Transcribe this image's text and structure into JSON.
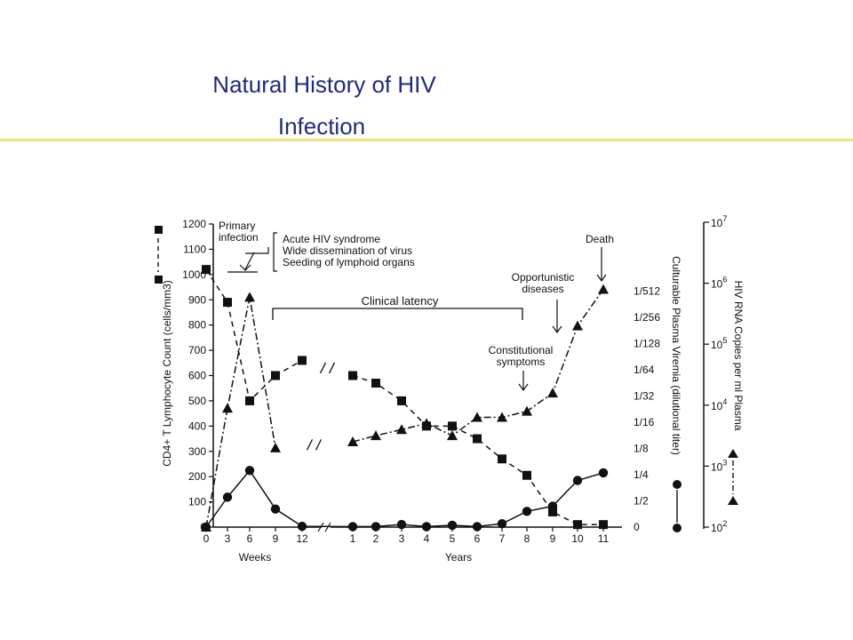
{
  "slide": {
    "title_line1": "Natural History of HIV",
    "title_line2": "Infection",
    "rule_color": "#f0e07a",
    "title_color": "#1f2a7a"
  },
  "chart_data": {
    "type": "line",
    "x_ticks": [
      {
        "label": "0",
        "unit": "Weeks"
      },
      {
        "label": "3",
        "unit": "Weeks"
      },
      {
        "label": "6",
        "unit": "Weeks"
      },
      {
        "label": "9",
        "unit": "Weeks"
      },
      {
        "label": "12",
        "unit": "Weeks"
      },
      {
        "label": "1",
        "unit": "Years"
      },
      {
        "label": "2",
        "unit": "Years"
      },
      {
        "label": "3",
        "unit": "Years"
      },
      {
        "label": "4",
        "unit": "Years"
      },
      {
        "label": "5",
        "unit": "Years"
      },
      {
        "label": "6",
        "unit": "Years"
      },
      {
        "label": "7",
        "unit": "Years"
      },
      {
        "label": "8",
        "unit": "Years"
      },
      {
        "label": "9",
        "unit": "Years"
      },
      {
        "label": "10",
        "unit": "Years"
      },
      {
        "label": "11",
        "unit": "Years"
      }
    ],
    "x_labels": {
      "weeks": "Weeks",
      "years": "Years"
    },
    "axes": {
      "left": {
        "label": "CD4+ T Lymphocyte Count (cells/mm3)",
        "ylim": [
          0,
          1200
        ],
        "ticks": [
          "0",
          "100",
          "200",
          "300",
          "400",
          "500",
          "600",
          "700",
          "800",
          "900",
          "1000",
          "1100",
          "1200"
        ]
      },
      "right1": {
        "label": "Culturable Plasma Viremia (dilutional titer)",
        "ticks": [
          "0",
          "1/2",
          "1/4",
          "1/8",
          "1/16",
          "1/32",
          "1/64",
          "1/128",
          "1/256",
          "1/512"
        ]
      },
      "right2": {
        "label": "HIV RNA Copies per ml Plasma",
        "ticks": [
          {
            "base": "10",
            "exp": "2"
          },
          {
            "base": "10",
            "exp": "3"
          },
          {
            "base": "10",
            "exp": "4"
          },
          {
            "base": "10",
            "exp": "5"
          },
          {
            "base": "10",
            "exp": "6"
          },
          {
            "base": "10",
            "exp": "7"
          }
        ],
        "log_range": [
          2,
          7
        ]
      }
    },
    "series": [
      {
        "key": "cd4",
        "marker": "square",
        "line": "dashed",
        "axis": "left",
        "points": [
          [
            "0w",
            1020
          ],
          [
            "3w",
            890
          ],
          [
            "6w",
            500
          ],
          [
            "9w",
            600
          ],
          [
            "12w",
            660
          ],
          [
            "1y",
            600
          ],
          [
            "2y",
            570
          ],
          [
            "3y",
            500
          ],
          [
            "4y",
            400
          ],
          [
            "5y",
            400
          ],
          [
            "6y",
            350
          ],
          [
            "7y",
            270
          ],
          [
            "8y",
            205
          ],
          [
            "9y",
            60
          ],
          [
            "10y",
            10
          ],
          [
            "11y",
            10
          ]
        ]
      },
      {
        "key": "viremia",
        "marker": "circle",
        "line": "solid",
        "axis": "right1",
        "points": [
          [
            "0w",
            0
          ],
          [
            "3w",
            1.14
          ],
          [
            "6w",
            2.16
          ],
          [
            "9w",
            0.69
          ],
          [
            "12w",
            0.03
          ],
          [
            "1y",
            0.02
          ],
          [
            "2y",
            0.02
          ],
          [
            "3y",
            0.1
          ],
          [
            "4y",
            0.02
          ],
          [
            "5y",
            0.07
          ],
          [
            "6y",
            0.02
          ],
          [
            "7y",
            0.13
          ],
          [
            "8y",
            0.6
          ],
          [
            "9y",
            0.8
          ],
          [
            "10y",
            1.78
          ],
          [
            "11y",
            2.07
          ]
        ]
      },
      {
        "key": "rna",
        "marker": "triangle",
        "line": "dashdot",
        "axis": "right2",
        "points": [
          [
            "0w",
            2.0
          ],
          [
            "3w",
            3.95
          ],
          [
            "6w",
            5.77
          ],
          [
            "9w",
            3.3
          ],
          [
            "1y",
            3.4
          ],
          [
            "2y",
            3.5
          ],
          [
            "3y",
            3.6
          ],
          [
            "4y",
            3.7
          ],
          [
            "5y",
            3.5
          ],
          [
            "6y",
            3.8
          ],
          [
            "7y",
            3.8
          ],
          [
            "8y",
            3.9
          ],
          [
            "9y",
            4.2
          ],
          [
            "10y",
            5.3
          ],
          [
            "11y",
            5.9
          ]
        ]
      }
    ],
    "annotations": {
      "primary_infection": "Primary infection",
      "acute_1": "Acute HIV syndrome",
      "acute_2": "Wide dissemination of virus",
      "acute_3": "Seeding of lymphoid organs",
      "clinical_latency": "Clinical latency",
      "constitutional": "Constitutional symptoms",
      "opportunistic": "Opportunistic diseases",
      "death": "Death"
    }
  }
}
